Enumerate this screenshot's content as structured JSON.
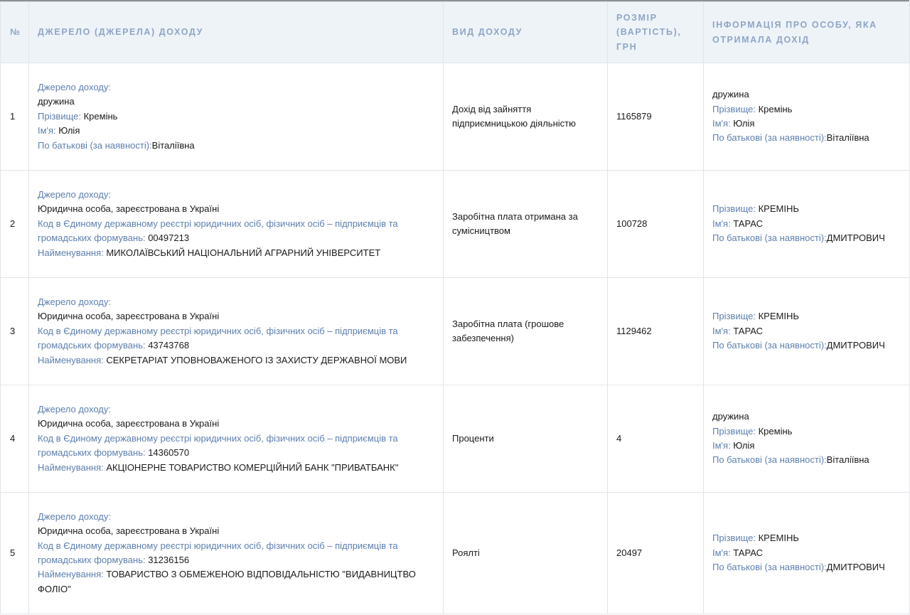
{
  "table": {
    "headers": {
      "num": "№",
      "source": "Джерело (джерела) доходу",
      "type": "Вид доходу",
      "amount": "Розмір (вартість), грн",
      "person": "Інформація про особу, яка отримала дохід"
    },
    "rows": [
      {
        "num": "1",
        "source": [
          {
            "label": "Джерело доходу:",
            "value": ""
          },
          {
            "label": "",
            "value": "дружина"
          },
          {
            "label": "Прізвище: ",
            "value": "Кремінь"
          },
          {
            "label": "Ім'я: ",
            "value": "Юлія"
          },
          {
            "label": "По батькові (за наявності):",
            "value": "Віталіївна"
          }
        ],
        "type": "Дохід від зайняття підприємницькою діяльністю",
        "amount": "1165879",
        "person": [
          {
            "label": "",
            "value": "дружина"
          },
          {
            "label": "Прізвище: ",
            "value": "Кремінь"
          },
          {
            "label": "Ім'я: ",
            "value": "Юлія"
          },
          {
            "label": "По батькові (за наявності):",
            "value": "Віталіївна"
          }
        ]
      },
      {
        "num": "2",
        "source": [
          {
            "label": "Джерело доходу:",
            "value": ""
          },
          {
            "label": "",
            "value": "Юридична особа, зареєстрована в Україні"
          },
          {
            "label": "Код в Єдиному державному реєстрі юридичних осіб, фізичних осіб – підприємців та громадських формувань: ",
            "value": "00497213"
          },
          {
            "label": "Найменування: ",
            "value": "МИКОЛАЇВСЬКИЙ НАЦІОНАЛЬНИЙ АГРАРНИЙ УНІВЕРСИТЕТ"
          }
        ],
        "type": "Заробітна плата отримана за сумісництвом",
        "amount": "100728",
        "person": [
          {
            "label": "Прізвище: ",
            "value": "КРЕМІНЬ"
          },
          {
            "label": "Ім'я: ",
            "value": "ТАРАС"
          },
          {
            "label": "По батькові (за наявності):",
            "value": "ДМИТРОВИЧ"
          }
        ]
      },
      {
        "num": "3",
        "source": [
          {
            "label": "Джерело доходу:",
            "value": ""
          },
          {
            "label": "",
            "value": "Юридична особа, зареєстрована в Україні"
          },
          {
            "label": "Код в Єдиному державному реєстрі юридичних осіб, фізичних осіб – підприємців та громадських формувань: ",
            "value": "43743768"
          },
          {
            "label": "Найменування: ",
            "value": "СЕКРЕТАРІАТ УПОВНОВАЖЕНОГО ІЗ ЗАХИСТУ ДЕРЖАВНОЇ МОВИ"
          }
        ],
        "type": "Заробітна плата (грошове забезпечення)",
        "amount": "1129462",
        "person": [
          {
            "label": "Прізвище: ",
            "value": "КРЕМІНЬ"
          },
          {
            "label": "Ім'я: ",
            "value": "ТАРАС"
          },
          {
            "label": "По батькові (за наявності):",
            "value": "ДМИТРОВИЧ"
          }
        ]
      },
      {
        "num": "4",
        "source": [
          {
            "label": "Джерело доходу:",
            "value": ""
          },
          {
            "label": "",
            "value": "Юридична особа, зареєстрована в Україні"
          },
          {
            "label": "Код в Єдиному державному реєстрі юридичних осіб, фізичних осіб – підприємців та громадських формувань: ",
            "value": "14360570"
          },
          {
            "label": "Найменування: ",
            "value": "АКЦІОНЕРНЕ ТОВАРИСТВО КОМЕРЦІЙНИЙ БАНК \"ПРИВАТБАНК\""
          }
        ],
        "type": "Проценти",
        "amount": "4",
        "person": [
          {
            "label": "",
            "value": "дружина"
          },
          {
            "label": "Прізвище: ",
            "value": "Кремінь"
          },
          {
            "label": "Ім'я: ",
            "value": "Юлія"
          },
          {
            "label": "По батькові (за наявності):",
            "value": "Віталіївна"
          }
        ]
      },
      {
        "num": "5",
        "source": [
          {
            "label": "Джерело доходу:",
            "value": ""
          },
          {
            "label": "",
            "value": "Юридична особа, зареєстрована в Україні"
          },
          {
            "label": "Код в Єдиному державному реєстрі юридичних осіб, фізичних осіб – підприємців та громадських формувань: ",
            "value": "31236156"
          },
          {
            "label": "Найменування: ",
            "value": "ТОВАРИСТВО З ОБМЕЖЕНОЮ ВІДПОВІДАЛЬНІСТЮ \"ВИДАВНИЦТВО ФОЛІО\""
          }
        ],
        "type": "Роялті",
        "amount": "20497",
        "person": [
          {
            "label": "Прізвище: ",
            "value": "КРЕМІНЬ"
          },
          {
            "label": "Ім'я: ",
            "value": "ТАРАС"
          },
          {
            "label": "По батькові (за наявності):",
            "value": "ДМИТРОВИЧ"
          }
        ]
      }
    ]
  },
  "colors": {
    "label": "#5d7fae",
    "header_text": "#8ea5c6",
    "header_bg": "#eef3f8",
    "border": "#e1e5ea"
  }
}
